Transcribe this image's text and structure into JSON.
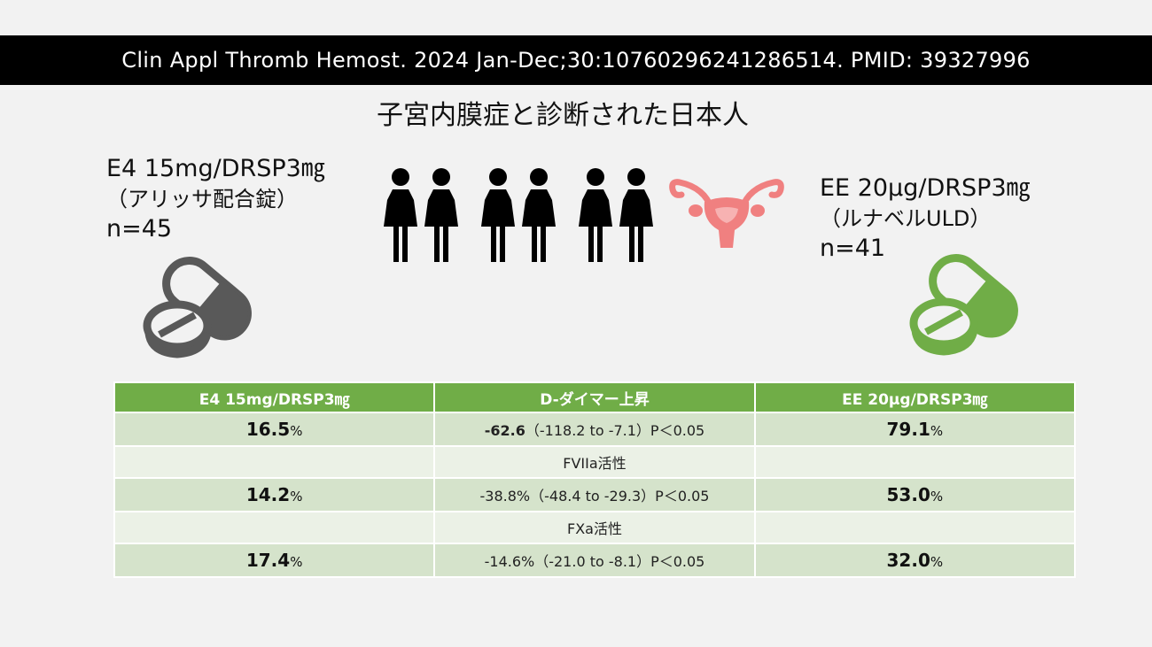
{
  "citation": "Clin Appl Thromb Hemost. 2024 Jan-Dec;30:10760296241286514. PMID: 39327996",
  "title": "子宮内膜症と診断された日本人",
  "arms": {
    "left": {
      "regimen": "E4 15mg/DRSP3㎎",
      "brand": "（アリッサ配合錠）",
      "n": "n=45",
      "pill_color": "#595959"
    },
    "right": {
      "regimen": "EE 20μg/DRSP3㎎",
      "brand": "（ルナベルULD）",
      "n": "n=41",
      "pill_color": "#70ad47"
    }
  },
  "icons": {
    "people": "women-group-icon",
    "uterus": "uterus-icon",
    "uterus_color": "#f08080"
  },
  "table": {
    "headers": [
      "E4 15mg/DRSP3㎎",
      "D-ダイマー上昇",
      "EE 20μg/DRSP3㎎"
    ],
    "header_color": "#70ad47",
    "unit": "%",
    "rows": [
      {
        "left": "16.5",
        "diff_bold": "-62.6",
        "diff": "（-118.2 to -7.1）P＜0.05",
        "right": "79.1"
      },
      {
        "label": "FVIIa活性"
      },
      {
        "left": "14.2",
        "diff_bold": "",
        "diff": "-38.8%（-48.4 to -29.3）P＜0.05",
        "right": "53.0"
      },
      {
        "label": "FXa活性"
      },
      {
        "left": "17.4",
        "diff_bold": "",
        "diff": "-14.6%（-21.0 to -8.1）P＜0.05",
        "right": "32.0"
      }
    ]
  }
}
